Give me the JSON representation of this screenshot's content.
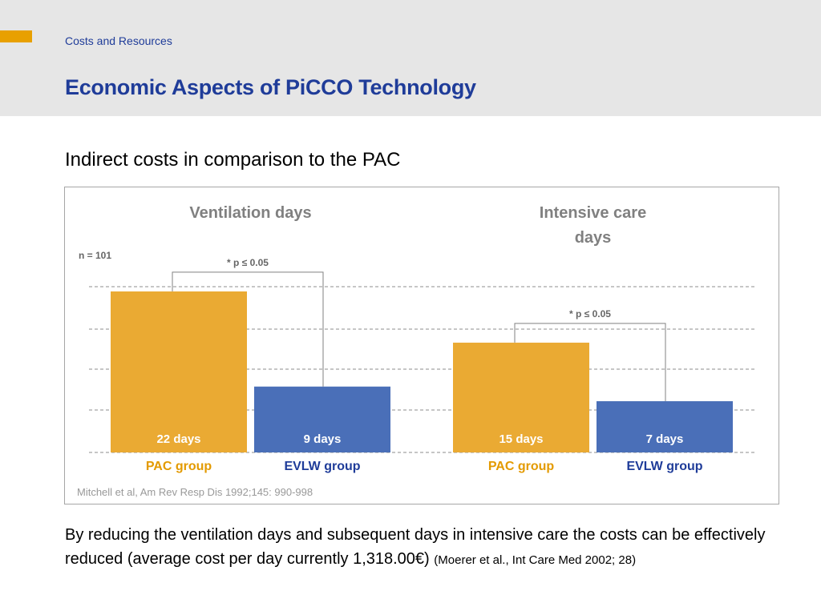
{
  "colors": {
    "pac": "#eaaa33",
    "evlw": "#4a6fb8",
    "pac_label": "#e39a00",
    "evlw_label": "#1f3c99",
    "title": "#1f3c99"
  },
  "header": {
    "section": "Costs and Resources",
    "title": "Economic Aspects of PiCCO Technology"
  },
  "subtitle": "Indirect costs in comparison to the PAC",
  "chart_data": {
    "type": "bar",
    "n_label": "n = 101",
    "categories": [
      "PAC group",
      "EVLW group"
    ],
    "groups": [
      {
        "title_lines": [
          "Ventilation days"
        ],
        "significance": "* p ≤ 0.05",
        "values": [
          22,
          9
        ],
        "value_labels": [
          "22 days",
          "9 days"
        ]
      },
      {
        "title_lines": [
          "Intensive care",
          "days"
        ],
        "significance": "* p ≤ 0.05",
        "values": [
          15,
          7
        ],
        "value_labels": [
          "15 days",
          "7 days"
        ]
      }
    ],
    "grid": true,
    "citation": "Mitchell et al, Am Rev Resp Dis 1992;145: 990-998"
  },
  "footer": {
    "text": "By reducing the ventilation days and subsequent days in intensive care the costs can be effectively reduced (average cost per day currently 1,318.00€)",
    "reference": "(Moerer et al., Int Care Med 2002; 28)"
  }
}
